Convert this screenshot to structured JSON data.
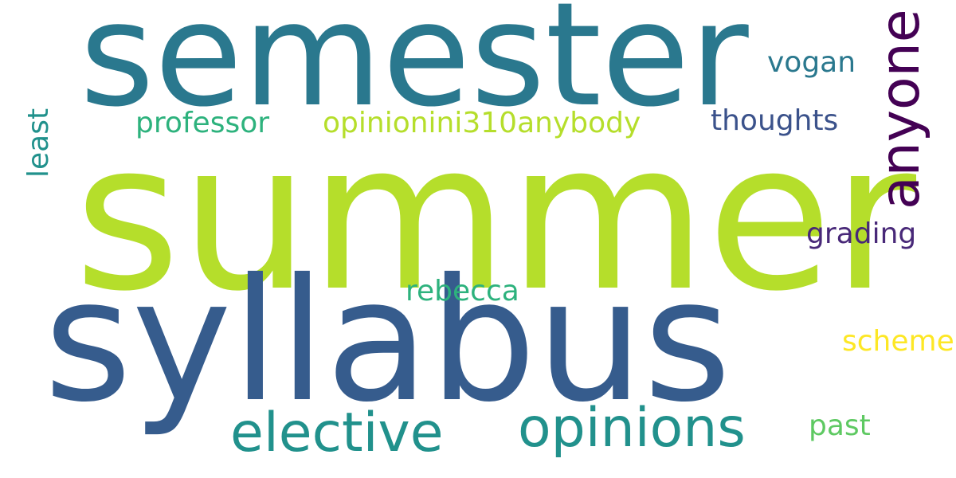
{
  "words": [
    {
      "text": "summer",
      "color": "#b5de2b"
    },
    {
      "text": "semester",
      "color": "#2a788e"
    },
    {
      "text": "syllabus",
      "color": "#365c8d"
    },
    {
      "text": "anyone",
      "color": "#440154"
    },
    {
      "text": "vogan",
      "color": "#2a788e"
    },
    {
      "text": "professor",
      "color": "#2db27d"
    },
    {
      "text": "opinionini310anybody",
      "color": "#b5de2b"
    },
    {
      "text": "thoughts",
      "color": "#3b528b"
    },
    {
      "text": "least",
      "color": "#21918c"
    },
    {
      "text": "grading",
      "color": "#482878"
    },
    {
      "text": "rebecca",
      "color": "#2db27d"
    },
    {
      "text": "scheme",
      "color": "#fde725"
    },
    {
      "text": "elective",
      "color": "#21918c"
    },
    {
      "text": "opinions",
      "color": "#21918c"
    },
    {
      "text": "past",
      "color": "#5ec962"
    }
  ]
}
